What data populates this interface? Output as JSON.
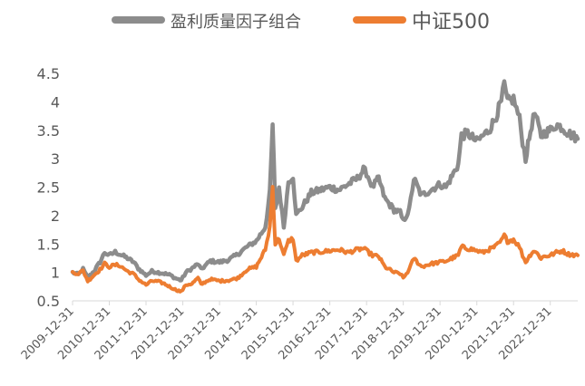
{
  "chart_data": {
    "type": "line",
    "legend_placement": "top-center",
    "grid": false,
    "ylim": [
      0.5,
      4.5
    ],
    "y_ticks": [
      0.5,
      1,
      1.5,
      2,
      2.5,
      3,
      3.5,
      4,
      4.5
    ],
    "y_tick_labels": [
      "0.5",
      "1",
      "1.5",
      "2",
      "2.5",
      "3",
      "3.5",
      "4",
      "4.5"
    ],
    "xlim": [
      "2009-12-31",
      "2023-09-30"
    ],
    "x_tick_dates": [
      "2009-12-31",
      "2010-12-31",
      "2011-12-31",
      "2012-12-31",
      "2013-12-31",
      "2014-12-31",
      "2015-12-31",
      "2016-12-31",
      "2017-12-31",
      "2018-12-31",
      "2019-12-31",
      "2020-12-31",
      "2021-12-31",
      "2022-12-31"
    ],
    "x_tick_labels": [
      "2009-12-31",
      "2010-12-31",
      "2011-12-31",
      "2012-12-31",
      "2013-12-31",
      "2014-12-31",
      "2015-12-31",
      "2016-12-31",
      "2017-12-31",
      "2018-12-31",
      "2019-12-31",
      "2020-12-31",
      "2021-12-31",
      "2022-12-31"
    ],
    "series": [
      {
        "name": "盈利质量因子组合",
        "color": "#8c8c8c",
        "points": [
          [
            "2009-12-31",
            1.0
          ],
          [
            "2010-02-28",
            0.96
          ],
          [
            "2010-04-15",
            1.06
          ],
          [
            "2010-05-31",
            0.9
          ],
          [
            "2010-07-31",
            1.02
          ],
          [
            "2010-09-30",
            1.18
          ],
          [
            "2010-11-15",
            1.35
          ],
          [
            "2010-12-31",
            1.3
          ],
          [
            "2011-02-28",
            1.36
          ],
          [
            "2011-04-15",
            1.32
          ],
          [
            "2011-06-30",
            1.25
          ],
          [
            "2011-08-31",
            1.18
          ],
          [
            "2011-10-15",
            1.07
          ],
          [
            "2011-12-31",
            0.95
          ],
          [
            "2012-02-28",
            1.02
          ],
          [
            "2012-04-30",
            1.0
          ],
          [
            "2012-06-30",
            0.98
          ],
          [
            "2012-08-31",
            0.95
          ],
          [
            "2012-10-15",
            0.9
          ],
          [
            "2012-12-15",
            0.86
          ],
          [
            "2013-01-31",
            1.0
          ],
          [
            "2013-03-31",
            1.07
          ],
          [
            "2013-05-31",
            1.15
          ],
          [
            "2013-06-30",
            1.05
          ],
          [
            "2013-09-30",
            1.2
          ],
          [
            "2013-12-31",
            1.18
          ],
          [
            "2014-03-31",
            1.22
          ],
          [
            "2014-06-30",
            1.32
          ],
          [
            "2014-09-30",
            1.45
          ],
          [
            "2014-12-31",
            1.55
          ],
          [
            "2015-03-31",
            1.8
          ],
          [
            "2015-05-15",
            2.4
          ],
          [
            "2015-06-12",
            3.6
          ],
          [
            "2015-07-08",
            2.1
          ],
          [
            "2015-08-15",
            2.5
          ],
          [
            "2015-09-30",
            1.8
          ],
          [
            "2015-11-15",
            2.6
          ],
          [
            "2015-12-31",
            2.7
          ],
          [
            "2016-01-31",
            2.0
          ],
          [
            "2016-03-31",
            2.15
          ],
          [
            "2016-06-30",
            2.4
          ],
          [
            "2016-09-30",
            2.45
          ],
          [
            "2016-12-31",
            2.5
          ],
          [
            "2017-03-31",
            2.45
          ],
          [
            "2017-06-30",
            2.55
          ],
          [
            "2017-09-30",
            2.65
          ],
          [
            "2017-11-30",
            2.8
          ],
          [
            "2017-12-31",
            2.75
          ],
          [
            "2018-02-28",
            2.5
          ],
          [
            "2018-04-30",
            2.65
          ],
          [
            "2018-06-30",
            2.3
          ],
          [
            "2018-09-30",
            2.1
          ],
          [
            "2018-11-30",
            2.05
          ],
          [
            "2018-12-31",
            1.9
          ],
          [
            "2019-02-28",
            2.1
          ],
          [
            "2019-04-15",
            2.65
          ],
          [
            "2019-06-30",
            2.35
          ],
          [
            "2019-09-30",
            2.45
          ],
          [
            "2019-12-31",
            2.55
          ],
          [
            "2020-02-28",
            2.5
          ],
          [
            "2020-04-30",
            2.7
          ],
          [
            "2020-06-30",
            2.9
          ],
          [
            "2020-07-31",
            3.4
          ],
          [
            "2020-09-30",
            3.45
          ],
          [
            "2020-11-30",
            3.35
          ],
          [
            "2020-12-31",
            3.3
          ],
          [
            "2021-02-28",
            3.4
          ],
          [
            "2021-04-30",
            3.5
          ],
          [
            "2021-06-30",
            3.7
          ],
          [
            "2021-08-31",
            4.0
          ],
          [
            "2021-09-30",
            4.3
          ],
          [
            "2021-10-31",
            4.0
          ],
          [
            "2021-12-31",
            4.05
          ],
          [
            "2022-02-28",
            3.7
          ],
          [
            "2022-03-31",
            3.3
          ],
          [
            "2022-04-30",
            3.0
          ],
          [
            "2022-06-30",
            3.6
          ],
          [
            "2022-07-31",
            3.8
          ],
          [
            "2022-09-30",
            3.4
          ],
          [
            "2022-10-31",
            3.45
          ],
          [
            "2022-12-31",
            3.5
          ],
          [
            "2023-02-28",
            3.6
          ],
          [
            "2023-04-30",
            3.55
          ],
          [
            "2023-06-30",
            3.45
          ],
          [
            "2023-09-30",
            3.35
          ]
        ]
      },
      {
        "name": "中证500",
        "color": "#ed7d31",
        "points": [
          [
            "2009-12-31",
            1.0
          ],
          [
            "2010-02-28",
            0.98
          ],
          [
            "2010-04-15",
            1.03
          ],
          [
            "2010-05-31",
            0.85
          ],
          [
            "2010-07-31",
            0.95
          ],
          [
            "2010-09-30",
            1.05
          ],
          [
            "2010-11-15",
            1.15
          ],
          [
            "2010-12-31",
            1.1
          ],
          [
            "2011-02-28",
            1.13
          ],
          [
            "2011-04-15",
            1.12
          ],
          [
            "2011-06-30",
            1.02
          ],
          [
            "2011-08-31",
            0.97
          ],
          [
            "2011-10-15",
            0.88
          ],
          [
            "2011-12-31",
            0.78
          ],
          [
            "2012-02-28",
            0.85
          ],
          [
            "2012-04-30",
            0.84
          ],
          [
            "2012-06-30",
            0.8
          ],
          [
            "2012-08-31",
            0.74
          ],
          [
            "2012-10-15",
            0.7
          ],
          [
            "2012-12-15",
            0.66
          ],
          [
            "2013-01-31",
            0.78
          ],
          [
            "2013-03-31",
            0.8
          ],
          [
            "2013-05-31",
            0.9
          ],
          [
            "2013-06-30",
            0.79
          ],
          [
            "2013-09-30",
            0.88
          ],
          [
            "2013-12-31",
            0.85
          ],
          [
            "2014-03-31",
            0.86
          ],
          [
            "2014-06-30",
            0.9
          ],
          [
            "2014-09-30",
            1.05
          ],
          [
            "2014-12-31",
            1.1
          ],
          [
            "2015-03-31",
            1.4
          ],
          [
            "2015-05-15",
            1.8
          ],
          [
            "2015-06-12",
            2.5
          ],
          [
            "2015-07-08",
            1.5
          ],
          [
            "2015-08-15",
            1.6
          ],
          [
            "2015-09-30",
            1.3
          ],
          [
            "2015-11-15",
            1.55
          ],
          [
            "2015-12-31",
            1.6
          ],
          [
            "2016-01-31",
            1.2
          ],
          [
            "2016-03-31",
            1.3
          ],
          [
            "2016-06-30",
            1.35
          ],
          [
            "2016-09-30",
            1.36
          ],
          [
            "2016-12-31",
            1.38
          ],
          [
            "2017-03-31",
            1.4
          ],
          [
            "2017-06-30",
            1.35
          ],
          [
            "2017-09-30",
            1.4
          ],
          [
            "2017-11-30",
            1.42
          ],
          [
            "2017-12-31",
            1.38
          ],
          [
            "2018-02-28",
            1.3
          ],
          [
            "2018-04-30",
            1.28
          ],
          [
            "2018-06-30",
            1.1
          ],
          [
            "2018-09-30",
            1.0
          ],
          [
            "2018-11-30",
            0.98
          ],
          [
            "2018-12-31",
            0.9
          ],
          [
            "2019-02-28",
            1.05
          ],
          [
            "2019-04-15",
            1.25
          ],
          [
            "2019-06-30",
            1.1
          ],
          [
            "2019-09-30",
            1.15
          ],
          [
            "2019-12-31",
            1.18
          ],
          [
            "2020-02-28",
            1.2
          ],
          [
            "2020-04-30",
            1.25
          ],
          [
            "2020-06-30",
            1.3
          ],
          [
            "2020-07-31",
            1.45
          ],
          [
            "2020-09-30",
            1.42
          ],
          [
            "2020-11-30",
            1.4
          ],
          [
            "2020-12-31",
            1.38
          ],
          [
            "2021-02-28",
            1.35
          ],
          [
            "2021-04-30",
            1.4
          ],
          [
            "2021-06-30",
            1.45
          ],
          [
            "2021-08-31",
            1.55
          ],
          [
            "2021-09-30",
            1.65
          ],
          [
            "2021-10-31",
            1.55
          ],
          [
            "2021-12-31",
            1.58
          ],
          [
            "2022-02-28",
            1.45
          ],
          [
            "2022-03-31",
            1.3
          ],
          [
            "2022-04-30",
            1.18
          ],
          [
            "2022-06-30",
            1.35
          ],
          [
            "2022-07-31",
            1.38
          ],
          [
            "2022-09-30",
            1.25
          ],
          [
            "2022-10-31",
            1.28
          ],
          [
            "2022-12-31",
            1.3
          ],
          [
            "2023-02-28",
            1.35
          ],
          [
            "2023-04-30",
            1.38
          ],
          [
            "2023-06-30",
            1.32
          ],
          [
            "2023-09-30",
            1.3
          ]
        ]
      }
    ]
  }
}
